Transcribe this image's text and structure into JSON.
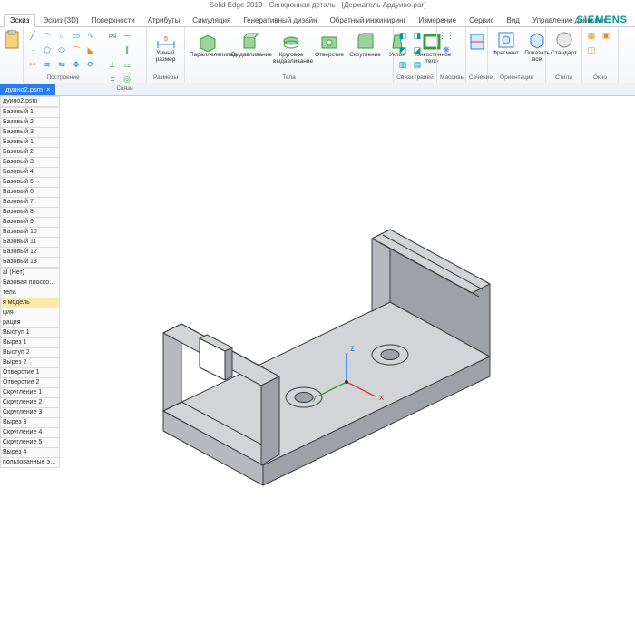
{
  "app_title": "Solid Edge 2019 - Синхронная деталь - [Держатель Ардуино.par]",
  "brand": "SIEMENS",
  "tabs": [
    {
      "label": "Эскиз"
    },
    {
      "label": "Эскиз (3D)"
    },
    {
      "label": "Поверхности"
    },
    {
      "label": "Атрибуты"
    },
    {
      "label": "Симуляция"
    },
    {
      "label": "Генеративный дизайн"
    },
    {
      "label": "Обратный инжиниринг"
    },
    {
      "label": "Измерение"
    },
    {
      "label": "Сервис"
    },
    {
      "label": "Вид"
    },
    {
      "label": "Управление данными"
    }
  ],
  "groups": {
    "g0": {
      "label": ""
    },
    "g1": {
      "label": "Построение"
    },
    "g2": {
      "label": "Связи"
    },
    "g3": {
      "label": "Размеры",
      "btn": "Умный\nразмер"
    },
    "g4": {
      "label": "",
      "btns": [
        "Параллелепипед",
        "Выдавливание",
        "Круговое\nвыдавливание",
        "Отверстие",
        "Скругление",
        "Уклон",
        "Тонкостенное\nтело"
      ]
    },
    "g5": {
      "label": "Тела"
    },
    "g6": {
      "label": "Связи граней"
    },
    "g7": {
      "label": "Массивы"
    },
    "g8": {
      "label": "Сечение"
    },
    "g9": {
      "label": "Ориентация",
      "btns": [
        "Фрагмент",
        "Показать\nвсе"
      ]
    },
    "g10": {
      "label": "Стили",
      "btn": "Стандарт"
    },
    "g11": {
      "label": "Окно"
    }
  },
  "doc_tab": {
    "name": "дуино2.psm",
    "close": "×"
  },
  "tree": [
    "дуино2.psm",
    "",
    "Базовый 1",
    "Базовый 2",
    "Базовый 3",
    "Базовый 1",
    "Базовый 2",
    "Базовый 3",
    "Базовый 4",
    "Базовый 5",
    "Базовый 6",
    "Базовый 7",
    "Базовый 8",
    "Базовый 9",
    "Базовый 10",
    "Базовый 11",
    "Базовый 12",
    "Базовый 13",
    "",
    "al (Нет)",
    "Базовая плоскость",
    "тела",
    "я модель",
    "ция",
    "рация",
    "Выступ 1",
    "Вырез 1",
    "Выступ 2",
    "Вырез 2",
    "Отверстие 1",
    "Отверстие 2",
    "Скругление 1",
    "Скругление 2",
    "Скругление 3",
    "Вырез 3",
    "Скругление 4",
    "Скругление 5",
    "Вырез 4",
    "пользованные эскизы"
  ],
  "tree_highlight_index": 22,
  "part": {
    "fill_top": "#d2d4d8",
    "fill_front": "#b7b9bf",
    "fill_side": "#9fa1a8",
    "edge": "#3a3c40",
    "axis_x": "#d33c3c",
    "axis_y": "#3a9d3a",
    "axis_z": "#2b7de9",
    "axis_labels": {
      "x": "x",
      "y": "y",
      "z": "z"
    }
  }
}
